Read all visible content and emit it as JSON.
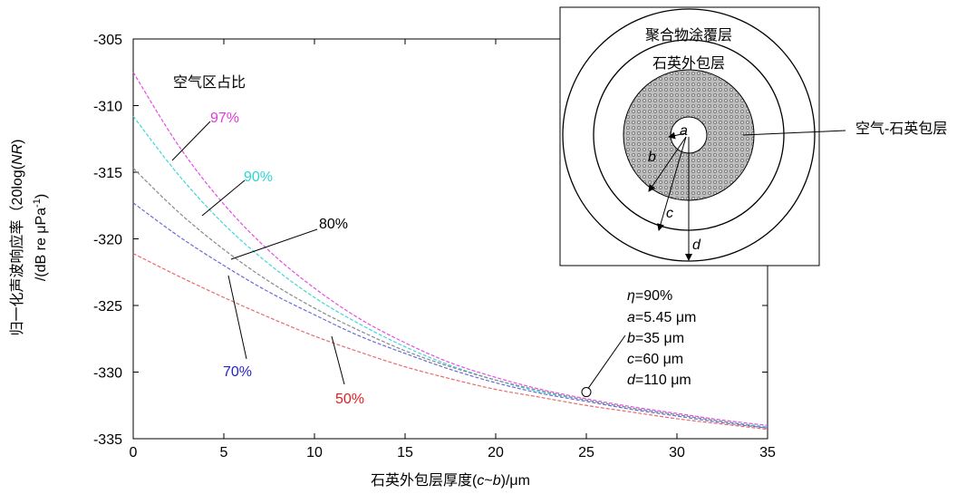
{
  "chart_data": {
    "type": "line",
    "xlabel": {
      "pre": "石英外包层厚度(",
      "var1": "c",
      "mid": "~",
      "var2": "b",
      "post": ")/μm"
    },
    "ylabel": {
      "line1": {
        "pre": "归一化声波响应率（20log(",
        "var": "NR",
        "post": ")"
      },
      "line2": {
        "pre": "/(dB re μPa",
        "sup": "-1",
        "post": ")"
      }
    },
    "xlim": [
      0,
      35
    ],
    "ylim": [
      -335,
      -305
    ],
    "xticks": [
      0,
      5,
      10,
      15,
      20,
      25,
      30,
      35
    ],
    "yticks": [
      -305,
      -310,
      -315,
      -320,
      -325,
      -330,
      -335
    ],
    "grid": false,
    "legend_title": "空气区占比",
    "series": [
      {
        "name": "97%",
        "color": "#e64ce6",
        "label_color": "#e03ad8",
        "x": [
          0,
          2.5,
          5,
          7.5,
          10,
          12.5,
          15,
          17.5,
          20,
          22.5,
          25,
          27.5,
          30,
          32.5,
          35
        ],
        "y": [
          -307.5,
          -313.0,
          -317.4,
          -320.9,
          -323.7,
          -326.0,
          -327.8,
          -329.3,
          -330.4,
          -331.3,
          -332.0,
          -332.6,
          -333.1,
          -333.6,
          -334.0
        ]
      },
      {
        "name": "90%",
        "color": "#3fd7d7",
        "label_color": "#2fd4d4",
        "x": [
          0,
          2.5,
          5,
          7.5,
          10,
          12.5,
          15,
          17.5,
          20,
          22.5,
          25,
          27.5,
          30,
          32.5,
          35
        ],
        "y": [
          -310.8,
          -315.2,
          -318.9,
          -321.9,
          -324.4,
          -326.4,
          -328.1,
          -329.5,
          -330.6,
          -331.5,
          -332.1,
          -332.7,
          -333.2,
          -333.7,
          -334.1
        ]
      },
      {
        "name": "80%",
        "color": "#888888",
        "label_color": "#000000",
        "x": [
          0,
          2.5,
          5,
          7.5,
          10,
          12.5,
          15,
          17.5,
          20,
          22.5,
          25,
          27.5,
          30,
          32.5,
          35
        ],
        "y": [
          -314.7,
          -318.0,
          -320.8,
          -323.2,
          -325.2,
          -326.9,
          -328.4,
          -329.6,
          -330.6,
          -331.4,
          -332.1,
          -332.7,
          -333.2,
          -333.7,
          -334.2
        ]
      },
      {
        "name": "70%",
        "color": "#6a6ad8",
        "label_color": "#2424c8",
        "x": [
          0,
          2.5,
          5,
          7.5,
          10,
          12.5,
          15,
          17.5,
          20,
          22.5,
          25,
          27.5,
          30,
          32.5,
          35
        ],
        "y": [
          -317.3,
          -319.8,
          -322.0,
          -324.0,
          -325.7,
          -327.3,
          -328.6,
          -329.8,
          -330.8,
          -331.6,
          -332.2,
          -332.8,
          -333.3,
          -333.8,
          -334.2
        ]
      },
      {
        "name": "50%",
        "color": "#e86a6a",
        "label_color": "#e02020",
        "x": [
          0,
          2.5,
          5,
          7.5,
          10,
          12.5,
          15,
          17.5,
          20,
          22.5,
          25,
          27.5,
          30,
          32.5,
          35
        ],
        "y": [
          -321.1,
          -322.8,
          -324.4,
          -325.9,
          -327.3,
          -328.5,
          -329.6,
          -330.5,
          -331.3,
          -331.9,
          -332.5,
          -333.0,
          -333.5,
          -333.9,
          -334.3
        ]
      }
    ],
    "marker": {
      "x": 25,
      "y": -331.5
    },
    "params": [
      {
        "var": "η",
        "rest": "=90%"
      },
      {
        "var": "a",
        "rest": "=5.45 μm"
      },
      {
        "var": "b",
        "rest": "=35 μm"
      },
      {
        "var": "c",
        "rest": "=60 μm"
      },
      {
        "var": "d",
        "rest": "=110 μm"
      }
    ],
    "inset": {
      "outer_label": "聚合物涂覆层",
      "middle_label": "石英外包层",
      "cladding_label": "空气-石英包层",
      "radius_labels": [
        "a",
        "b",
        "c",
        "d"
      ]
    }
  }
}
